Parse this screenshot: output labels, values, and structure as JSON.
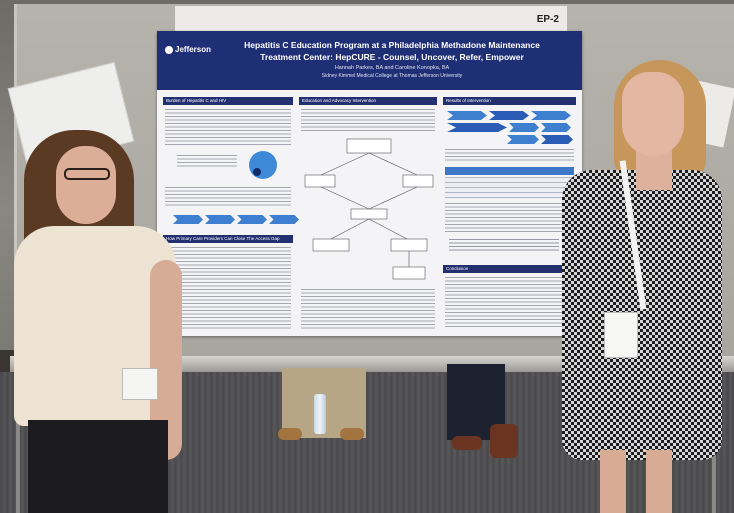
{
  "booth": {
    "label": "EP-2"
  },
  "poster": {
    "logo": "Jefferson",
    "title_line1": "Hepatitis C Education Program at a Philadelphia Methadone Maintenance",
    "title_line2": "Treatment Center: HepCURE - Counsel, Uncover, Refer, Empower",
    "authors": "Hannah Parkes, BA and Caroline Konopka, BA",
    "affiliation": "Sidney Kimmel Medical College at Thomas Jefferson University",
    "sections": {
      "burden": "Burden of Hepatitis C and HIV",
      "education": "Education and Advocacy Intervention",
      "results": "Results of Intervention",
      "primary_care": "How Primary Care Providers Can Close The Access Gap",
      "conclusion": "Conclusion"
    }
  },
  "colors": {
    "poster_header": "#1f2f75",
    "chevron_blue": "#3f7fcf"
  }
}
